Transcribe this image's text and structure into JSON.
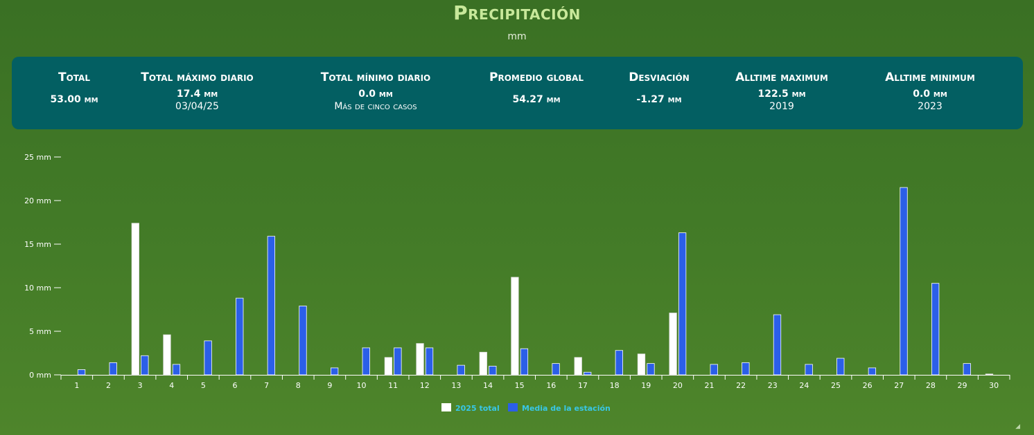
{
  "header": {
    "title": "Precipitación",
    "unit": "mm"
  },
  "stats": [
    {
      "label": "Total",
      "value": "53.00 mm",
      "sub": ""
    },
    {
      "label": "Total máximo diario",
      "value": "17.4 mm",
      "sub": "03/04/25"
    },
    {
      "label": "Total mínimo diario",
      "value": "0.0 mm",
      "sub": "Más de cinco casos"
    },
    {
      "label": "Promedio global",
      "value": "54.27 mm",
      "sub": ""
    },
    {
      "label": "Desviación",
      "value": "-1.27 mm",
      "sub": ""
    },
    {
      "label": "Alltime maximum",
      "value": "122.5 mm",
      "sub": "2019"
    },
    {
      "label": "Alltime minimum",
      "value": "0.0 mm",
      "sub": "2023"
    }
  ],
  "chart_data": {
    "type": "bar",
    "categories": [
      "1",
      "2",
      "3",
      "4",
      "5",
      "6",
      "7",
      "8",
      "9",
      "10",
      "11",
      "12",
      "13",
      "14",
      "15",
      "16",
      "17",
      "18",
      "19",
      "20",
      "21",
      "22",
      "23",
      "24",
      "25",
      "26",
      "27",
      "28",
      "29",
      "30"
    ],
    "series": [
      {
        "name": "2025 total",
        "color": "#ffffff",
        "values": [
          0,
          0,
          17.4,
          4.6,
          0,
          0,
          0,
          0,
          0,
          0,
          2.0,
          3.6,
          0,
          2.6,
          11.2,
          0,
          2.0,
          0,
          2.4,
          7.1,
          0,
          0,
          0,
          0,
          0,
          0,
          0,
          0,
          0,
          0.1
        ]
      },
      {
        "name": "Media de la estación",
        "color": "#2b5fe8",
        "values": [
          0.6,
          1.4,
          2.2,
          1.2,
          3.9,
          8.8,
          15.9,
          7.9,
          0.8,
          3.1,
          3.1,
          3.1,
          1.1,
          1.0,
          3.0,
          1.3,
          0.3,
          2.8,
          1.3,
          16.3,
          1.2,
          1.4,
          6.9,
          1.2,
          1.9,
          0.8,
          21.5,
          10.5,
          1.3,
          0
        ]
      }
    ],
    "y_tick_labels": [
      "0 mm",
      "5 mm",
      "10 mm",
      "15 mm",
      "20 mm",
      "25 mm"
    ],
    "ylim": [
      0,
      25
    ],
    "legend_position": "bottom-center",
    "grid": false
  }
}
